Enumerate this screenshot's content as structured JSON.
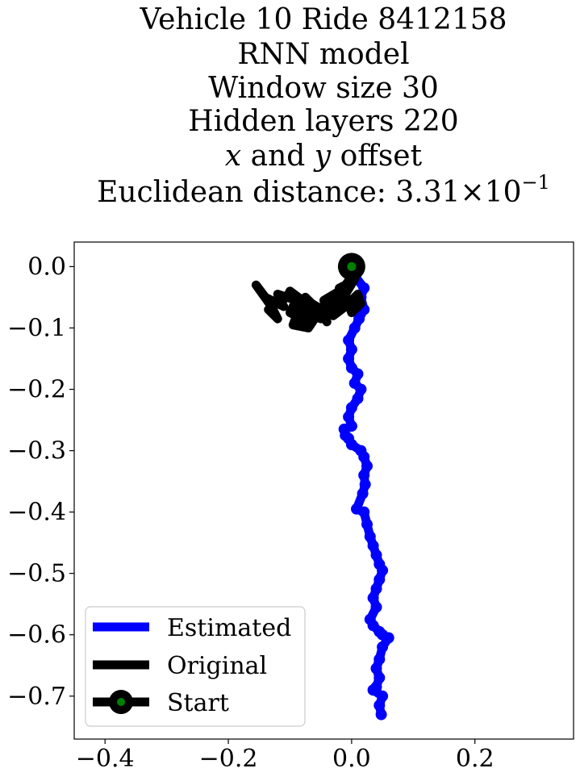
{
  "chart_data": {
    "type": "line",
    "title_lines": [
      "Vehicle 10 Ride 8412158",
      "RNN model",
      "Window size 30",
      "Hidden layers 220",
      "x and y offset",
      "Euclidean distance: 3.31×10⁻¹"
    ],
    "title_parts": {
      "offset_x": "x",
      "offset_and": " and ",
      "offset_y": "y",
      "offset_suffix": " offset",
      "distance_prefix": "Euclidean distance: ",
      "distance_mantissa": "3.31",
      "distance_times": "×",
      "distance_base": "10",
      "distance_exponent": "−1"
    },
    "xlabel": "",
    "ylabel": "",
    "xlim": [
      -0.45,
      0.36
    ],
    "ylim": [
      -0.77,
      0.04
    ],
    "xticks": [
      -0.4,
      -0.2,
      0.0,
      0.2
    ],
    "xtick_labels": [
      "−0.4",
      "−0.2",
      "0.0",
      "0.2"
    ],
    "yticks": [
      0.0,
      -0.1,
      -0.2,
      -0.3,
      -0.4,
      -0.5,
      -0.6,
      -0.7
    ],
    "ytick_labels": [
      "0.0",
      "−0.1",
      "−0.2",
      "−0.3",
      "−0.4",
      "−0.5",
      "−0.6",
      "−0.7"
    ],
    "grid": false,
    "legend_position": "lower-left",
    "series": [
      {
        "name": "Estimated",
        "color": "#0000ff",
        "style": "thick line with circle markers",
        "x": [
          0.0,
          0.005,
          0.02,
          0.015,
          0.02,
          0.012,
          0.005,
          -0.005,
          0.0,
          -0.005,
          0.0,
          0.01,
          0.005,
          0.015,
          0.01,
          0.0,
          -0.005,
          0.0,
          -0.012,
          -0.01,
          -0.005,
          0.0,
          0.015,
          0.02,
          0.025,
          0.02,
          0.022,
          0.018,
          0.008,
          0.02,
          0.025,
          0.03,
          0.035,
          0.04,
          0.045,
          0.05,
          0.045,
          0.04,
          0.035,
          0.04,
          0.03,
          0.035,
          0.045,
          0.05,
          0.06,
          0.05,
          0.045,
          0.04,
          0.045,
          0.04,
          0.035,
          0.05,
          0.045,
          0.048
        ],
        "y": [
          0.0,
          -0.015,
          -0.035,
          -0.05,
          -0.07,
          -0.085,
          -0.1,
          -0.12,
          -0.135,
          -0.15,
          -0.165,
          -0.175,
          -0.19,
          -0.2,
          -0.215,
          -0.23,
          -0.245,
          -0.26,
          -0.265,
          -0.275,
          -0.28,
          -0.29,
          -0.3,
          -0.31,
          -0.325,
          -0.34,
          -0.355,
          -0.37,
          -0.395,
          -0.4,
          -0.42,
          -0.44,
          -0.455,
          -0.47,
          -0.485,
          -0.495,
          -0.51,
          -0.525,
          -0.54,
          -0.555,
          -0.575,
          -0.585,
          -0.595,
          -0.6,
          -0.605,
          -0.62,
          -0.64,
          -0.655,
          -0.67,
          -0.685,
          -0.69,
          -0.7,
          -0.715,
          -0.73
        ]
      },
      {
        "name": "Original",
        "color": "#000000",
        "style": "thick line",
        "x": [
          0.0,
          0.005,
          -0.01,
          -0.02,
          -0.015,
          -0.03,
          -0.02,
          -0.045,
          -0.04,
          -0.065,
          -0.05,
          -0.08,
          -0.07,
          -0.1,
          -0.09,
          -0.12,
          -0.11,
          -0.14,
          -0.155,
          -0.13,
          -0.12,
          -0.135,
          -0.105,
          -0.1,
          -0.08,
          -0.095,
          -0.07,
          -0.06,
          -0.085,
          -0.075,
          -0.055,
          -0.04,
          -0.05,
          -0.035,
          -0.02,
          -0.03,
          -0.01,
          0.01,
          0.015,
          0.0,
          -0.01,
          0.005,
          0.0
        ],
        "y": [
          0.0,
          -0.01,
          -0.03,
          -0.035,
          -0.05,
          -0.065,
          -0.04,
          -0.055,
          -0.075,
          -0.06,
          -0.085,
          -0.07,
          -0.09,
          -0.075,
          -0.055,
          -0.045,
          -0.065,
          -0.05,
          -0.03,
          -0.065,
          -0.085,
          -0.07,
          -0.05,
          -0.04,
          -0.055,
          -0.095,
          -0.1,
          -0.085,
          -0.06,
          -0.05,
          -0.07,
          -0.09,
          -0.075,
          -0.05,
          -0.06,
          -0.08,
          -0.065,
          -0.045,
          -0.06,
          -0.075,
          -0.045,
          -0.02,
          0.0
        ]
      }
    ],
    "start_point": {
      "name": "Start",
      "x": 0.0,
      "y": 0.0,
      "outer_color": "#000000",
      "inner_color": "#008000"
    },
    "legend": [
      {
        "label": "Estimated",
        "color": "#0000ff"
      },
      {
        "label": "Original",
        "color": "#000000"
      },
      {
        "label": "Start",
        "color": "#000000",
        "marker_color": "#008000"
      }
    ]
  }
}
